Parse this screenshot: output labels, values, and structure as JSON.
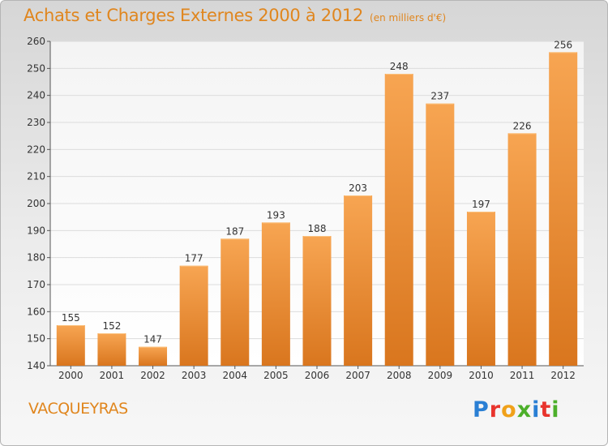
{
  "title": "Achats et Charges Externes 2000 à 2012",
  "unit": "(en milliers d'€)",
  "commune": "VACQUEYRAS",
  "logo": {
    "text": "Proxiti",
    "letter_colors": [
      "#2a7fd4",
      "#e8342d",
      "#f0a11a",
      "#4caf2a",
      "#2a7fd4",
      "#e8342d",
      "#4caf2a"
    ]
  },
  "colors": {
    "bar_light": "#f7a552",
    "bar_dark": "#d9761e",
    "accent": "#e0861e"
  },
  "chart_data": {
    "type": "bar",
    "title": "Achats et Charges Externes 2000 à 2012",
    "subtitle": "(en milliers d'€)",
    "categories": [
      "2000",
      "2001",
      "2002",
      "2003",
      "2004",
      "2005",
      "2006",
      "2007",
      "2008",
      "2009",
      "2010",
      "2011",
      "2012"
    ],
    "values": [
      155,
      152,
      147,
      177,
      187,
      193,
      188,
      203,
      248,
      237,
      197,
      226,
      256
    ],
    "ylim": [
      140,
      260
    ],
    "yticks": [
      140,
      150,
      160,
      170,
      180,
      190,
      200,
      210,
      220,
      230,
      240,
      250,
      260
    ],
    "grid": true,
    "xlabel": "",
    "ylabel": ""
  }
}
